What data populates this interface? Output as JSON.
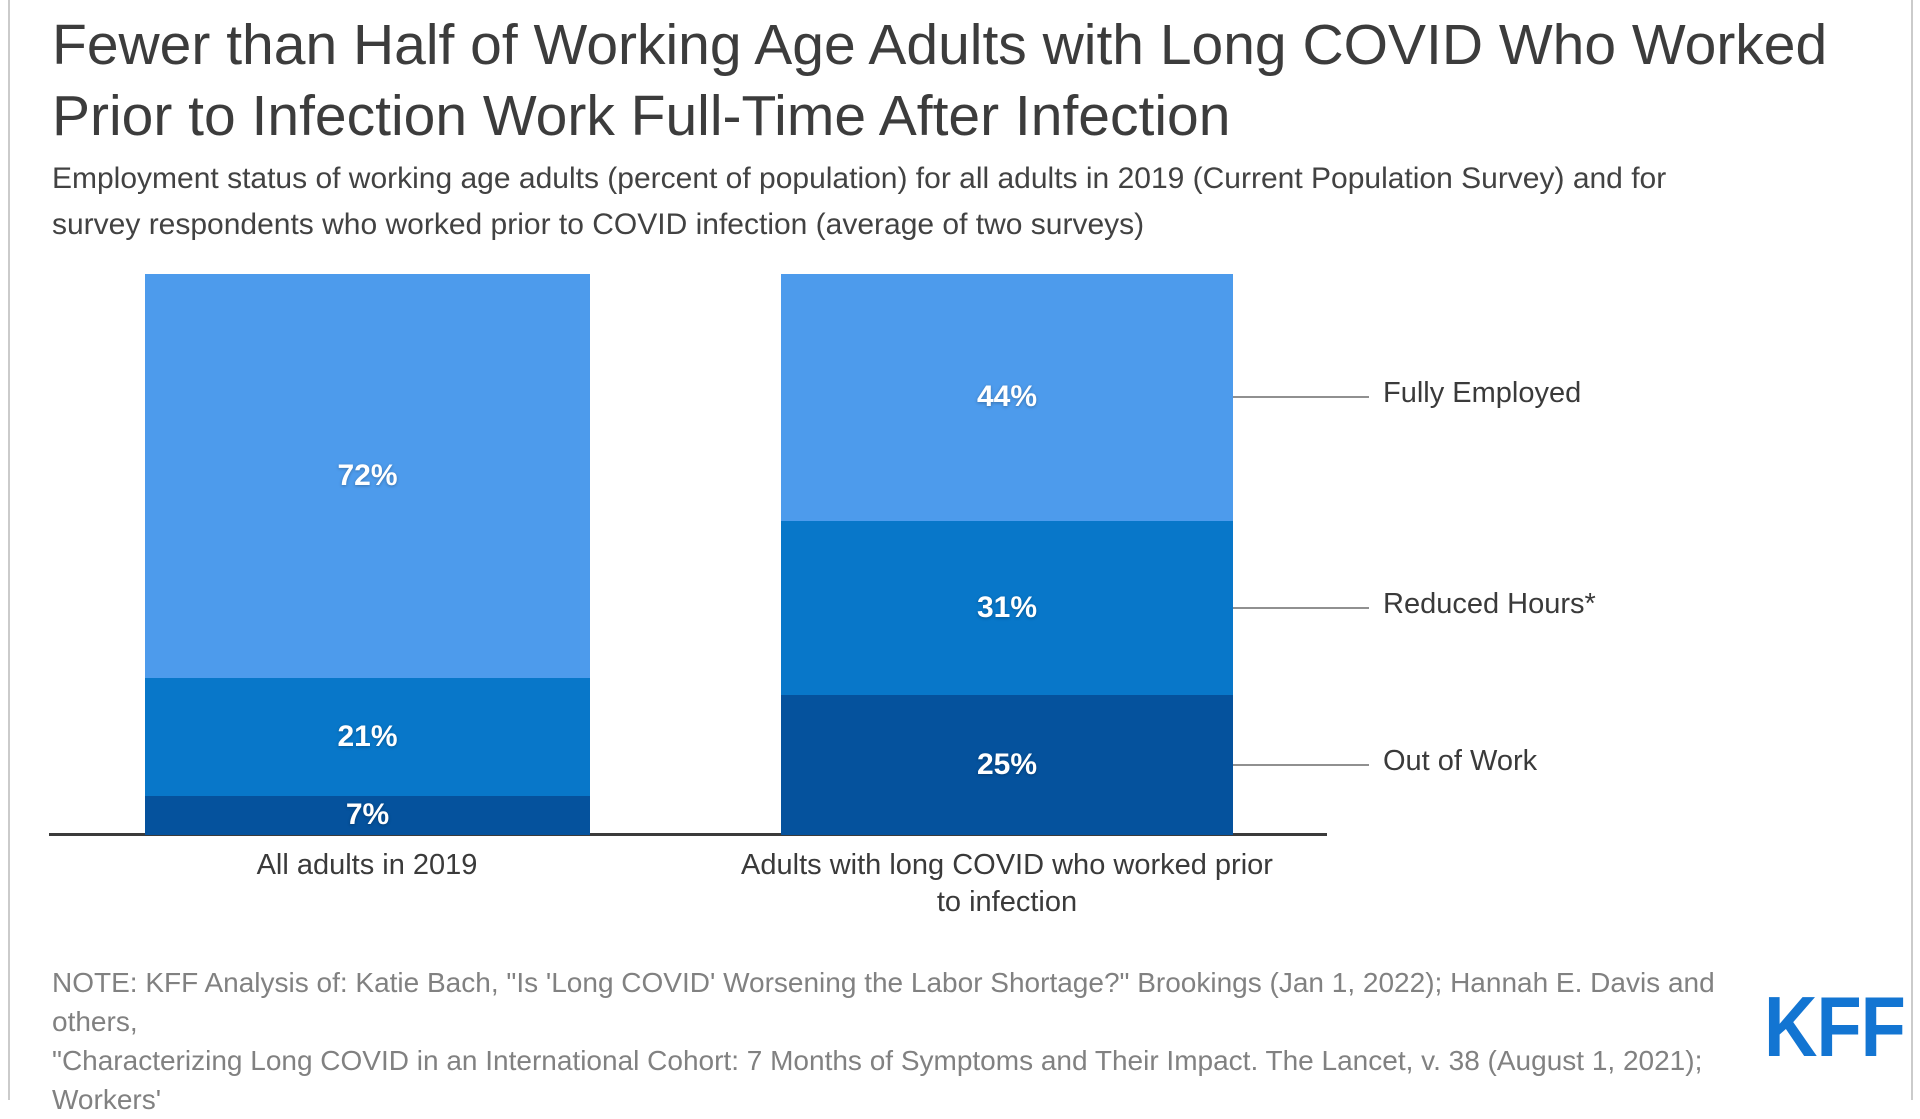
{
  "figure": {
    "title_lines": [
      "Fewer than Half of Working Age Adults with Long COVID Who Worked",
      "Prior to Infection Work Full-Time After Infection"
    ],
    "subtitle_lines": [
      "Employment status of working age adults (percent of population) for all adults in 2019 (Current Population Survey) and for",
      "survey respondents who worked prior to COVID infection (average of two surveys)"
    ],
    "note_lines": [
      "NOTE: KFF Analysis of: Katie Bach, \"Is 'Long COVID' Worsening the Labor Shortage?\" Brookings (Jan 1, 2022); Hannah E. Davis and others,",
      "\"Characterizing Long COVID in an International Cohort: 7 Months of Symptoms and Their Impact. The Lancet, v. 38 (August 1, 2021); Workers'"
    ],
    "logo_text": "KFF",
    "colors": {
      "fully_employed": "#4d9bec",
      "reduced_hours": "#0877c9",
      "out_of_work": "#05529d",
      "axis": "#3b3b3b",
      "leader_line": "#909090",
      "title_text": "#3c3c3c",
      "note_text": "#818181",
      "logo_blue": "#1375d2",
      "border": "#cbcbcb"
    }
  },
  "chart_data": {
    "type": "bar",
    "subtype": "stacked-vertical",
    "categories": [
      "All adults in 2019",
      "Adults with long COVID who worked prior to infection"
    ],
    "category_label_lines": [
      [
        "All adults in 2019"
      ],
      [
        "Adults with long COVID who worked prior",
        "to infection"
      ]
    ],
    "series": [
      {
        "name": "Fully Employed",
        "color": "#4d9bec",
        "values": [
          72,
          44
        ]
      },
      {
        "name": "Reduced Hours*",
        "color": "#0877c9",
        "values": [
          21,
          31
        ]
      },
      {
        "name": "Out of Work",
        "color": "#05529d",
        "values": [
          7,
          25
        ]
      }
    ],
    "value_unit": "%",
    "ylim": [
      0,
      100
    ],
    "grid": "off",
    "legend_position": "right-leader-lines",
    "title": "Fewer than Half of Working Age Adults with Long COVID Who Worked Prior to Infection Work Full-Time After Infection",
    "xlabel": "",
    "ylabel": ""
  }
}
